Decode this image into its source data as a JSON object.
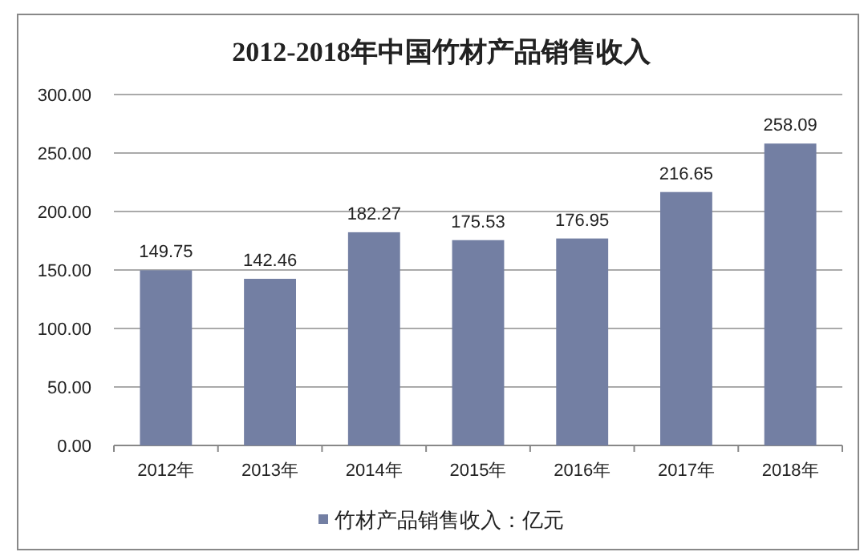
{
  "chart_data": {
    "type": "bar",
    "title": "2012-2018年中国竹材产品销售收入",
    "categories": [
      "2012年",
      "2013年",
      "2014年",
      "2015年",
      "2016年",
      "2017年",
      "2018年"
    ],
    "series": [
      {
        "name": "竹材产品销售收入：亿元",
        "color": "#737fa3",
        "values": [
          149.75,
          142.46,
          182.27,
          175.53,
          176.95,
          216.65,
          258.09
        ]
      }
    ],
    "ylim": [
      0,
      300
    ],
    "yticks": [
      {
        "value": 0,
        "label": "0.00"
      },
      {
        "value": 50,
        "label": "50.00"
      },
      {
        "value": 100,
        "label": "100.00"
      },
      {
        "value": 150,
        "label": "150.00"
      },
      {
        "value": 200,
        "label": "200.00"
      },
      {
        "value": 250,
        "label": "250.00"
      },
      {
        "value": 300,
        "label": "300.00"
      }
    ],
    "grid": "y",
    "legend": "bottom",
    "data_labels": true
  }
}
